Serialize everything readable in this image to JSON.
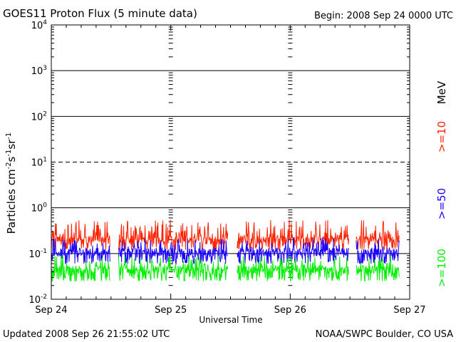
{
  "header": {
    "title": "GOES11 Proton Flux (5 minute data)",
    "begin": "Begin: 2008 Sep 24 0000 UTC"
  },
  "footer": {
    "updated": "Updated 2008 Sep 26 21:55:02 UTC",
    "credit": "NOAA/SWPC Boulder, CO USA"
  },
  "chart_data": {
    "type": "line",
    "title": "GOES11 Proton Flux (5 minute data)",
    "xlabel": "Universal Time",
    "ylabel": "Particles cm⁻²s⁻¹sr⁻¹",
    "yscale": "log",
    "ylim": [
      0.01,
      10000
    ],
    "xlim": [
      0,
      72
    ],
    "x_units": "hours since 2008 Sep 24 0000 UTC",
    "x_ticks": [
      {
        "x": 0,
        "label": "Sep 24"
      },
      {
        "x": 24,
        "label": "Sep 25"
      },
      {
        "x": 48,
        "label": "Sep 26"
      },
      {
        "x": 72,
        "label": "Sep 27"
      }
    ],
    "y_ticks": [
      {
        "value": 0.01,
        "base": "10",
        "exp": "-2"
      },
      {
        "value": 0.1,
        "base": "10",
        "exp": "-1"
      },
      {
        "value": 1,
        "base": "10",
        "exp": "0"
      },
      {
        "value": 10,
        "base": "10",
        "exp": "1"
      },
      {
        "value": 100,
        "base": "10",
        "exp": "2"
      },
      {
        "value": 1000,
        "base": "10",
        "exp": "3"
      },
      {
        "value": 10000,
        "base": "10",
        "exp": "4"
      }
    ],
    "grid": "horizontal at each decade; 10 pfu line dashed",
    "energy_unit": "MeV",
    "data_gaps_hours": [
      [
        11.8,
        13.5
      ],
      [
        35.5,
        37.3
      ],
      [
        59.8,
        61.2
      ]
    ],
    "data_end_hour": 69.9,
    "series": [
      {
        "name": ">=10",
        "color": "#ff2200",
        "typical": 0.2,
        "range": [
          0.12,
          0.55
        ]
      },
      {
        "name": ">=50",
        "color": "#1a00ff",
        "typical": 0.11,
        "range": [
          0.06,
          0.22
        ]
      },
      {
        "name": ">=100",
        "color": "#00ee00",
        "typical": 0.045,
        "range": [
          0.025,
          0.09
        ]
      }
    ]
  }
}
